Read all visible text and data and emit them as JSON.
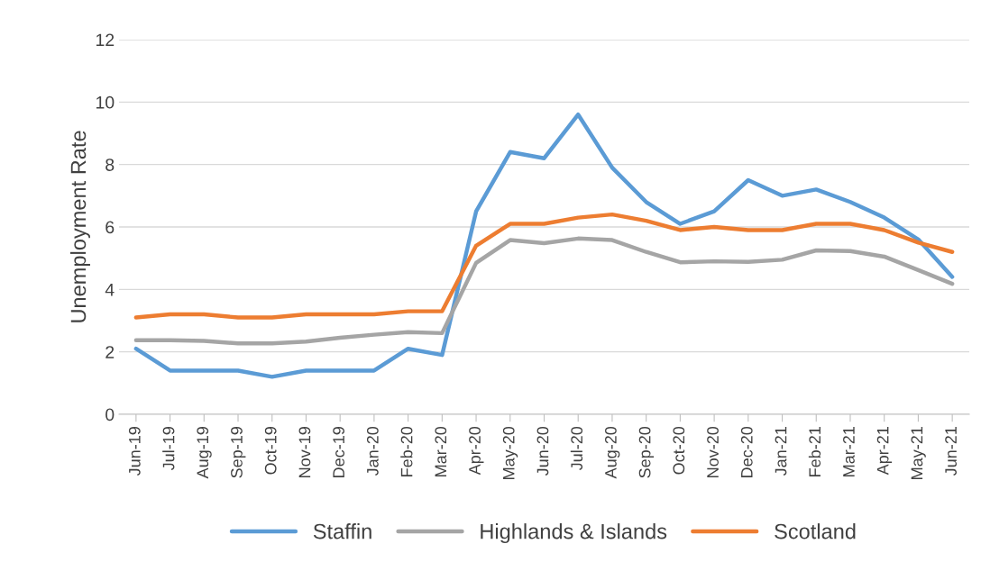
{
  "chart_data": {
    "type": "line",
    "ylabel": "Unemployment Rate",
    "categories": [
      "Jun-19",
      "Jul-19",
      "Aug-19",
      "Sep-19",
      "Oct-19",
      "Nov-19",
      "Dec-19",
      "Jan-20",
      "Feb-20",
      "Mar-20",
      "Apr-20",
      "May-20",
      "Jun-20",
      "Jul-20",
      "Aug-20",
      "Sep-20",
      "Oct-20",
      "Nov-20",
      "Dec-20",
      "Jan-21",
      "Feb-21",
      "Mar-21",
      "Apr-21",
      "May-21",
      "Jun-21"
    ],
    "series": [
      {
        "name": "Staffin",
        "color": "#5b9bd5",
        "values": [
          2.1,
          1.4,
          1.4,
          1.4,
          1.2,
          1.4,
          1.4,
          1.4,
          2.1,
          1.9,
          6.5,
          8.4,
          8.2,
          9.6,
          7.9,
          6.8,
          6.1,
          6.5,
          7.5,
          7.0,
          7.2,
          6.8,
          6.3,
          5.6,
          4.4
        ]
      },
      {
        "name": "Highlands & Islands",
        "color": "#a5a5a5",
        "values": [
          2.37,
          2.37,
          2.35,
          2.27,
          2.27,
          2.33,
          2.45,
          2.55,
          2.63,
          2.6,
          4.85,
          5.58,
          5.48,
          5.63,
          5.58,
          5.2,
          4.87,
          4.9,
          4.88,
          4.95,
          5.25,
          5.23,
          5.05,
          4.62,
          4.18
        ]
      },
      {
        "name": "Scotland",
        "color": "#ed7d31",
        "values": [
          3.1,
          3.2,
          3.2,
          3.1,
          3.1,
          3.2,
          3.2,
          3.2,
          3.3,
          3.3,
          5.4,
          6.1,
          6.1,
          6.3,
          6.4,
          6.2,
          5.9,
          6.0,
          5.9,
          5.9,
          6.1,
          6.1,
          5.9,
          5.5,
          5.2
        ]
      }
    ],
    "ylim": [
      0,
      12
    ],
    "yticks": [
      0,
      2,
      4,
      6,
      8,
      10,
      12
    ],
    "grid": "y",
    "legend": "bottom",
    "marker": "none",
    "line_style": "solid"
  }
}
